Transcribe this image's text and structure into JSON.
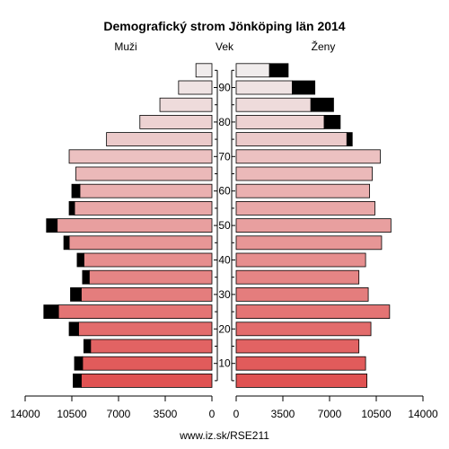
{
  "chart_data": {
    "type": "bar",
    "title": "Demografický strom Jönköping län 2014",
    "left_label": "Muži",
    "center_label": "Vek",
    "right_label": "Ženy",
    "footer": "www.iz.sk/RSE211",
    "age_groups": [
      "0-4",
      "5-9",
      "10-14",
      "15-19",
      "20-24",
      "25-29",
      "30-34",
      "35-39",
      "40-44",
      "45-49",
      "50-54",
      "55-59",
      "60-64",
      "65-69",
      "70-74",
      "75-79",
      "80-84",
      "85-89",
      "90+"
    ],
    "age_tick_labels": [
      "10",
      "20",
      "30",
      "40",
      "50",
      "60",
      "70",
      "80",
      "90"
    ],
    "x_tick_labels_left": [
      "14000",
      "10500",
      "7000",
      "3500",
      "0"
    ],
    "x_tick_labels_right": [
      "0",
      "3500",
      "7000",
      "10500",
      "14000"
    ],
    "xlim": [
      0,
      14000
    ],
    "series": [
      {
        "name": "Muži",
        "values": [
          9800,
          9700,
          9100,
          10000,
          11500,
          9800,
          9200,
          9600,
          10700,
          11600,
          10300,
          9900,
          10200,
          10700,
          7900,
          5400,
          3900,
          2500,
          1200
        ],
        "surplus": [
          600,
          600,
          500,
          700,
          1100,
          800,
          500,
          500,
          400,
          800,
          400,
          600,
          0,
          0,
          0,
          0,
          0,
          0,
          0
        ]
      },
      {
        "name": "Ženy",
        "values": [
          9800,
          9700,
          9200,
          10100,
          11500,
          9900,
          9200,
          9700,
          10900,
          11600,
          10400,
          10000,
          10200,
          10800,
          8300,
          6600,
          5600,
          4200,
          2500
        ],
        "surplus": [
          0,
          0,
          0,
          0,
          0,
          0,
          0,
          0,
          0,
          0,
          0,
          0,
          0,
          0,
          400,
          1200,
          1700,
          1700,
          1400
        ]
      }
    ],
    "colors": {
      "bar_bottom": "#e05252",
      "bar_top": "#f0ecec",
      "surplus": "#000000",
      "stroke": "#000000"
    }
  }
}
